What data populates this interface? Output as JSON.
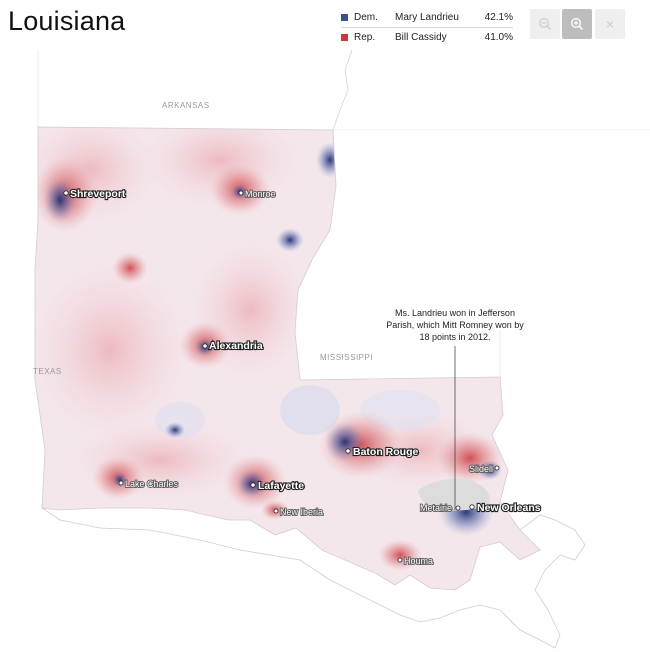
{
  "title": "Louisiana",
  "legend": [
    {
      "party": "Dem.",
      "candidate": "Mary Landrieu",
      "percent": "42.1%",
      "color": "#3a4f94"
    },
    {
      "party": "Rep.",
      "candidate": "Bill Cassidy",
      "percent": "41.0%",
      "color": "#c9373b"
    }
  ],
  "controls": {
    "zoom_out_icon": "zoom-out-icon",
    "zoom_in_icon": "zoom-in-icon",
    "close_icon": "close-icon",
    "close_glyph": "×"
  },
  "neighbors": {
    "arkansas": "ARKANSAS",
    "texas": "TEXAS",
    "mississippi": "MISSISSIPPI"
  },
  "cities": {
    "shreveport": "Shreveport",
    "monroe": "Monroe",
    "alexandria": "Alexandria",
    "baton_rouge": "Baton Rouge",
    "lafayette": "Lafayette",
    "lake_charles": "Lake Charles",
    "new_iberia": "New Iberia",
    "slidell": "Slidell",
    "metairie": "Metairie",
    "new_orleans": "New Orleans",
    "houma": "Houma"
  },
  "annotation": {
    "line1": "Ms. Landrieu won in Jefferson",
    "line2": "Parish, which Mitt Romney won by",
    "line3": "18 points in 2012."
  },
  "colors": {
    "dem": "#3a4f94",
    "rep": "#c9373b",
    "state_fill": "#f7e6ea",
    "land_outside": "#ffffff",
    "lake": "#dcdcdc"
  }
}
